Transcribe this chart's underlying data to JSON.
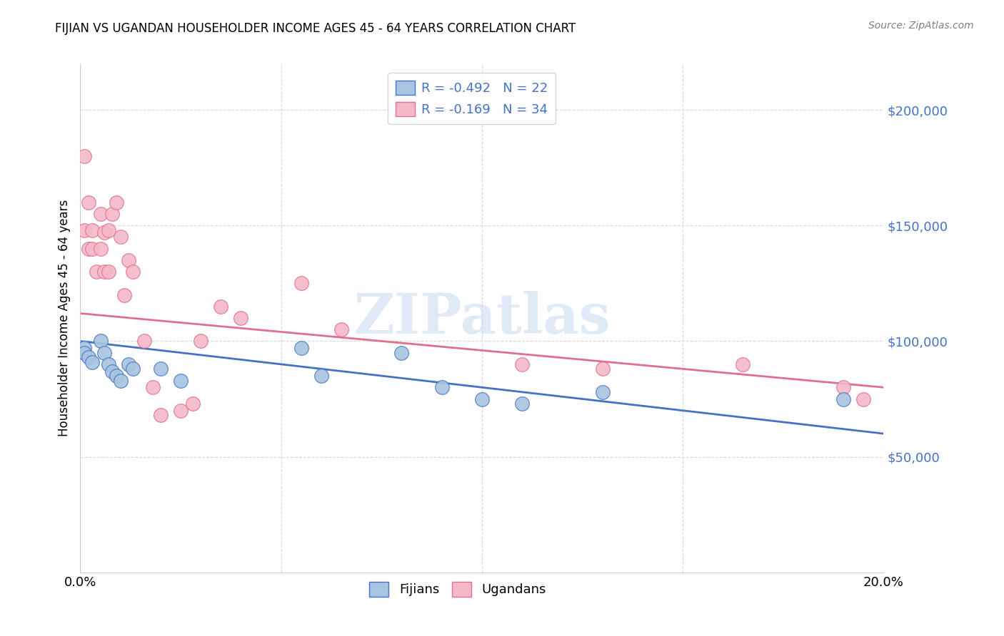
{
  "title": "FIJIAN VS UGANDAN HOUSEHOLDER INCOME AGES 45 - 64 YEARS CORRELATION CHART",
  "source": "Source: ZipAtlas.com",
  "ylabel": "Householder Income Ages 45 - 64 years",
  "xlim": [
    0.0,
    0.2
  ],
  "ylim": [
    0,
    220000
  ],
  "yticks": [
    50000,
    100000,
    150000,
    200000
  ],
  "ytick_labels": [
    "$50,000",
    "$100,000",
    "$150,000",
    "$200,000"
  ],
  "xticks": [
    0.0,
    0.05,
    0.1,
    0.15,
    0.2
  ],
  "xtick_labels": [
    "0.0%",
    "",
    "",
    "",
    "20.0%"
  ],
  "fijian_color": "#a8c4e0",
  "ugandan_color": "#f4b8c8",
  "fijian_line_color": "#4472c4",
  "ugandan_line_color": "#e07090",
  "background_color": "#ffffff",
  "grid_color": "#d8d8d8",
  "r_fijian": -0.492,
  "n_fijian": 22,
  "r_ugandan": -0.169,
  "n_ugandan": 34,
  "watermark": "ZIPatlas",
  "fijian_x": [
    0.001,
    0.001,
    0.002,
    0.003,
    0.005,
    0.006,
    0.007,
    0.008,
    0.009,
    0.01,
    0.012,
    0.013,
    0.02,
    0.025,
    0.055,
    0.06,
    0.08,
    0.09,
    0.1,
    0.11,
    0.13,
    0.19
  ],
  "fijian_y": [
    97000,
    95000,
    93000,
    91000,
    100000,
    95000,
    90000,
    87000,
    85000,
    83000,
    90000,
    88000,
    88000,
    83000,
    97000,
    85000,
    95000,
    80000,
    75000,
    73000,
    78000,
    75000
  ],
  "ugandan_x": [
    0.001,
    0.001,
    0.002,
    0.002,
    0.003,
    0.003,
    0.004,
    0.005,
    0.005,
    0.006,
    0.006,
    0.007,
    0.007,
    0.008,
    0.009,
    0.01,
    0.011,
    0.012,
    0.013,
    0.016,
    0.018,
    0.02,
    0.025,
    0.028,
    0.03,
    0.035,
    0.04,
    0.055,
    0.065,
    0.11,
    0.13,
    0.165,
    0.19,
    0.195
  ],
  "ugandan_y": [
    180000,
    148000,
    160000,
    140000,
    148000,
    140000,
    130000,
    155000,
    140000,
    147000,
    130000,
    148000,
    130000,
    155000,
    160000,
    145000,
    120000,
    135000,
    130000,
    100000,
    80000,
    68000,
    70000,
    73000,
    100000,
    115000,
    110000,
    125000,
    105000,
    90000,
    88000,
    90000,
    80000,
    75000
  ]
}
